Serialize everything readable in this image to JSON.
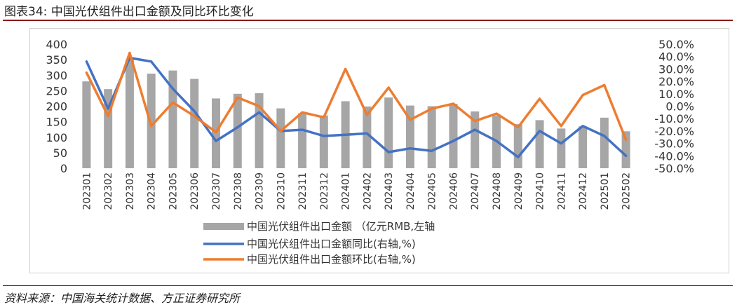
{
  "figure_title": "图表34: 中国光伏组件出口金额及同比环比变化",
  "source": "资料来源：中国海关统计数据、方正证券研究所",
  "colors": {
    "bar": "#a6a6a6",
    "yoy": "#4472c4",
    "mom": "#ed7d31",
    "rule": "#8a1a1a"
  },
  "chart_data": {
    "type": "bar+line",
    "categories": [
      "202301",
      "202302",
      "202303",
      "202304",
      "202305",
      "202306",
      "202307",
      "202308",
      "202309",
      "202310",
      "202311",
      "202312",
      "202401",
      "202402",
      "202403",
      "202404",
      "202405",
      "202406",
      "202407",
      "202408",
      "202409",
      "202410",
      "202411",
      "202412",
      "202501",
      "202502"
    ],
    "left_axis": {
      "min": 0,
      "max": 400,
      "step": 50,
      "ticks": [
        "0",
        "50",
        "100",
        "150",
        "200",
        "250",
        "300",
        "350",
        "400"
      ]
    },
    "right_axis": {
      "min": -50,
      "max": 50,
      "step": 10,
      "ticks": [
        "-50.0%",
        "-40.0%",
        "-30.0%",
        "-20.0%",
        "-10.0%",
        "0.0%",
        "10.0%",
        "20.0%",
        "30.0%",
        "40.0%",
        "50.0%"
      ]
    },
    "series": [
      {
        "name": "中国光伏组件出口金额 （亿元RMB,左轴",
        "kind": "bar",
        "axis": "left",
        "values": [
          280,
          255,
          350,
          305,
          315,
          288,
          225,
          240,
          242,
          193,
          177,
          170,
          216,
          199,
          228,
          202,
          200,
          208,
          183,
          170,
          142,
          155,
          128,
          135,
          163,
          119
        ]
      },
      {
        "name": "中国光伏组件出口金额同比(右轴,%)",
        "kind": "line",
        "axis": "right",
        "values": [
          36,
          -2,
          39,
          36,
          14,
          -4,
          -28,
          -17,
          -5,
          -20,
          -19,
          -24,
          -23,
          -22,
          -37,
          -34,
          -36,
          -28,
          -19,
          -28,
          -41,
          -20,
          -30,
          -16,
          -24,
          -40
        ]
      },
      {
        "name": "中国光伏组件出口金额环比(右轴,%)",
        "kind": "line",
        "axis": "right",
        "values": [
          27,
          -8,
          43,
          -16,
          3,
          -8,
          -21,
          7,
          0,
          -20,
          -5,
          -9,
          30,
          -7,
          15,
          -11,
          -2,
          2,
          -12,
          -6,
          -17,
          6,
          -16,
          9,
          17,
          -27
        ]
      }
    ]
  }
}
